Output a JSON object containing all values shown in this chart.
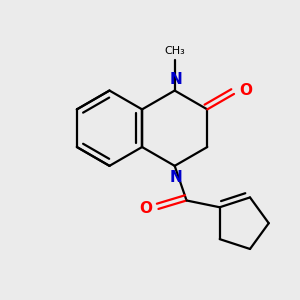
{
  "bg_color": "#ebebeb",
  "bond_color": "#000000",
  "nitrogen_color": "#0000cc",
  "oxygen_color": "#ff0000",
  "line_width": 1.6,
  "figsize": [
    3.0,
    3.0
  ],
  "dpi": 100,
  "xlim": [
    0.0,
    3.0
  ],
  "ylim": [
    0.0,
    3.0
  ]
}
